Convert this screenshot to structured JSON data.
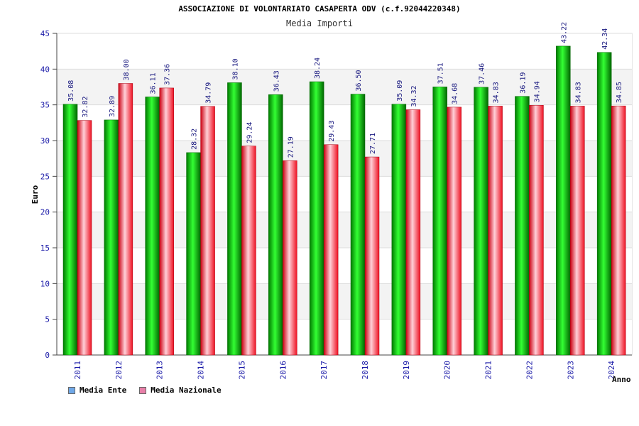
{
  "chart_data": {
    "type": "bar",
    "title": "ASSOCIAZIONE DI VOLONTARIATO CASAPERTA ODV (c.f.92044220348)",
    "subtitle": "Media Importi",
    "xlabel": "Anno",
    "ylabel": "Euro",
    "ylim": [
      0,
      45
    ],
    "yticks": [
      0,
      5,
      10,
      15,
      20,
      25,
      30,
      35,
      40,
      45
    ],
    "categories": [
      "2011",
      "2012",
      "2013",
      "2014",
      "2015",
      "2016",
      "2017",
      "2018",
      "2019",
      "2020",
      "2021",
      "2022",
      "2023",
      "2024"
    ],
    "series": [
      {
        "name": "Media Ente",
        "color": "#00cc00",
        "legend_color": "#6fa8e8",
        "values": [
          35.08,
          32.89,
          36.11,
          28.32,
          38.1,
          36.43,
          38.24,
          36.5,
          35.09,
          37.51,
          37.46,
          36.19,
          43.22,
          42.34
        ],
        "labels": [
          "35.08",
          "32.89",
          "36.11",
          "28.32",
          "38.10",
          "36.43",
          "38.24",
          "36.50",
          "35.09",
          "37.51",
          "37.46",
          "36.19",
          "43.22",
          "42.34"
        ]
      },
      {
        "name": "Media Nazionale",
        "color": "#ee2233",
        "legend_color": "#e87fa8",
        "values": [
          32.82,
          38.0,
          37.36,
          34.79,
          29.24,
          27.19,
          29.43,
          27.71,
          34.32,
          34.68,
          34.83,
          34.94,
          34.83,
          34.85
        ],
        "labels": [
          "32.82",
          "38.00",
          "37.36",
          "34.79",
          "29.24",
          "27.19",
          "29.43",
          "27.71",
          "34.32",
          "34.68",
          "34.83",
          "34.94",
          "34.83",
          "34.85"
        ]
      }
    ],
    "grid": true,
    "legend_position": "bottom-left"
  }
}
